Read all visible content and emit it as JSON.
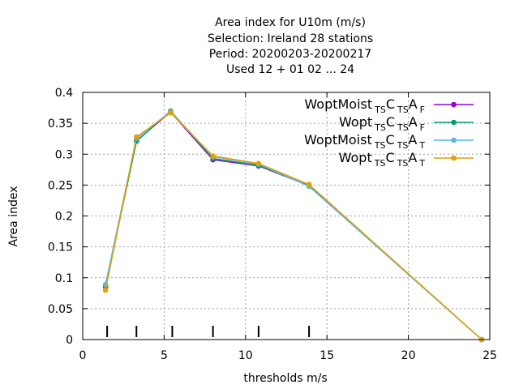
{
  "chart_data": {
    "type": "line",
    "title_lines": [
      "Area index  for U10m (m/s)",
      "Selection: Ireland     28 stations",
      "Period: 20200203-20200217",
      "Used  12 + 01 02 ... 24"
    ],
    "xlabel": "thresholds m/s",
    "ylabel": "Area index",
    "xlim": [
      0,
      25
    ],
    "ylim": [
      0,
      0.4
    ],
    "xticks": [
      0,
      5,
      10,
      15,
      20,
      25
    ],
    "yticks": [
      0,
      0.05,
      0.1,
      0.15,
      0.2,
      0.25,
      0.3,
      0.35,
      0.4
    ],
    "ytick_labels": [
      "0",
      "0.05",
      "0.1",
      "0.15",
      "0.2",
      "0.25",
      "0.3",
      "0.35",
      "0.4"
    ],
    "grid": true,
    "legend_position": "top-right",
    "threshold_markers": [
      1.5,
      3.3,
      5.5,
      8,
      10.8,
      13.9
    ],
    "series": [
      {
        "name_main": "WoptMoist",
        "name_sub1": "TS",
        "name_c": "C",
        "name_sub2": "TS",
        "name_a": "A",
        "name_sub3": "F",
        "color": "#9400d3",
        "x": [
          1.4,
          3.3,
          5.4,
          8.0,
          10.8,
          13.9,
          24.5
        ],
        "y": [
          0.085,
          0.322,
          0.368,
          0.291,
          0.281,
          0.249,
          0.0
        ]
      },
      {
        "name_main": "Wopt",
        "name_sub1": "TS",
        "name_c": "C",
        "name_sub2": "TS",
        "name_a": "A",
        "name_sub3": "F",
        "color": "#009e73",
        "x": [
          1.4,
          3.3,
          5.4,
          8.0,
          10.8,
          13.9,
          24.5
        ],
        "y": [
          0.086,
          0.321,
          0.37,
          0.293,
          0.282,
          0.249,
          0.0
        ]
      },
      {
        "name_main": "WoptMoist",
        "name_sub1": "TS",
        "name_c": "C",
        "name_sub2": "TS",
        "name_a": "A",
        "name_sub3": "T",
        "color": "#56b4e9",
        "x": [
          1.4,
          3.3,
          5.4,
          8.0,
          10.8,
          13.9,
          24.5
        ],
        "y": [
          0.089,
          0.326,
          0.369,
          0.296,
          0.284,
          0.248,
          0.0
        ]
      },
      {
        "name_main": "Wopt",
        "name_sub1": "TS",
        "name_c": "C",
        "name_sub2": "TS",
        "name_a": "A",
        "name_sub3": "T",
        "color": "#e69f00",
        "x": [
          1.4,
          3.3,
          5.4,
          8.0,
          10.8,
          13.9,
          24.5
        ],
        "y": [
          0.08,
          0.328,
          0.367,
          0.297,
          0.285,
          0.251,
          0.0
        ]
      }
    ]
  }
}
